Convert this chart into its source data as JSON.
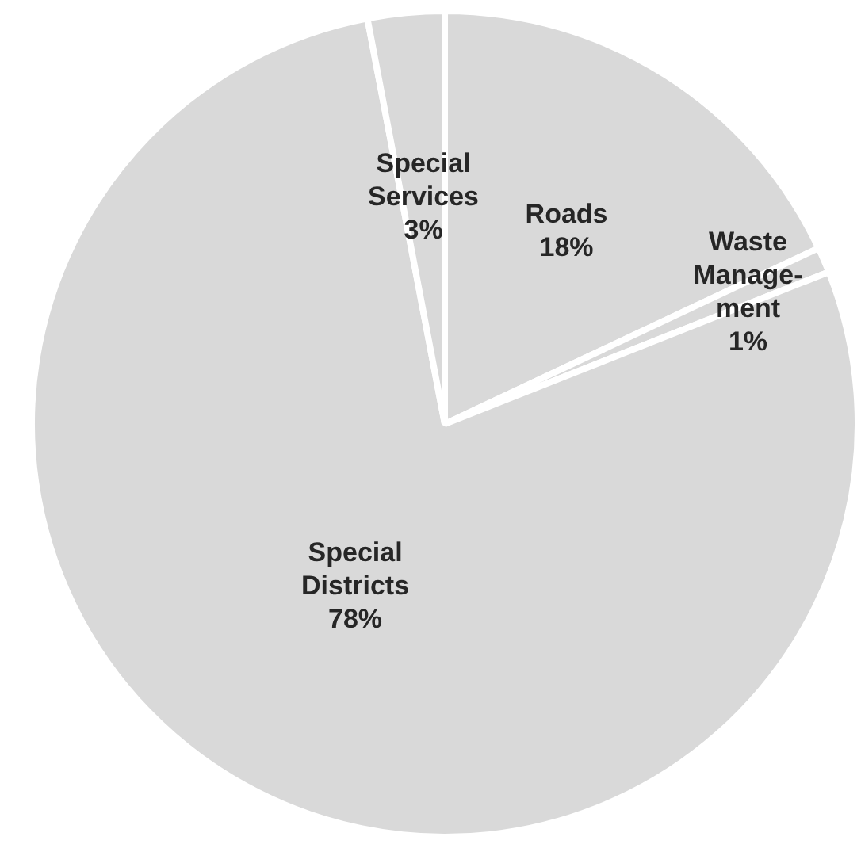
{
  "chart_data": {
    "type": "pie",
    "categories": [
      "Roads",
      "Waste Manage-ment",
      "Special Districts",
      "Special Services"
    ],
    "values": [
      18,
      1,
      78,
      3
    ],
    "value_labels": [
      "18%",
      "1%",
      "78%",
      "3%"
    ],
    "colors": [
      "#d9d9d9",
      "#d9d9d9",
      "#d9d9d9",
      "#d9d9d9"
    ],
    "legend": false
  }
}
